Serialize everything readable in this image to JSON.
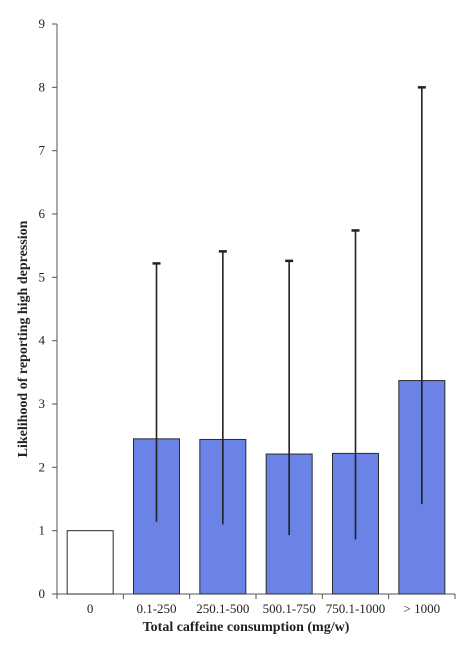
{
  "chart_data": {
    "type": "bar",
    "title": "",
    "xlabel": "Total caffeine consumption (mg/w)",
    "ylabel": "Likelihood of reporting high depression",
    "ylim": [
      0,
      9
    ],
    "yticks": [
      0,
      1,
      2,
      3,
      4,
      5,
      6,
      7,
      8,
      9
    ],
    "grid": false,
    "categories": [
      "0",
      "0.1-250",
      "250.1-500",
      "500.1-750",
      "750.1-1000",
      "> 1000"
    ],
    "values": [
      1.0,
      2.45,
      2.44,
      2.21,
      2.22,
      3.37
    ],
    "ci_lower": [
      null,
      1.14,
      1.1,
      0.93,
      0.86,
      1.42
    ],
    "ci_upper": [
      null,
      5.22,
      5.41,
      5.26,
      5.74,
      8.0
    ],
    "colors": {
      "reference_bar": "#ffffff",
      "bar": "#6b83e6",
      "bar_stroke": "#2b2b2b",
      "error_bar": "#222222"
    }
  }
}
